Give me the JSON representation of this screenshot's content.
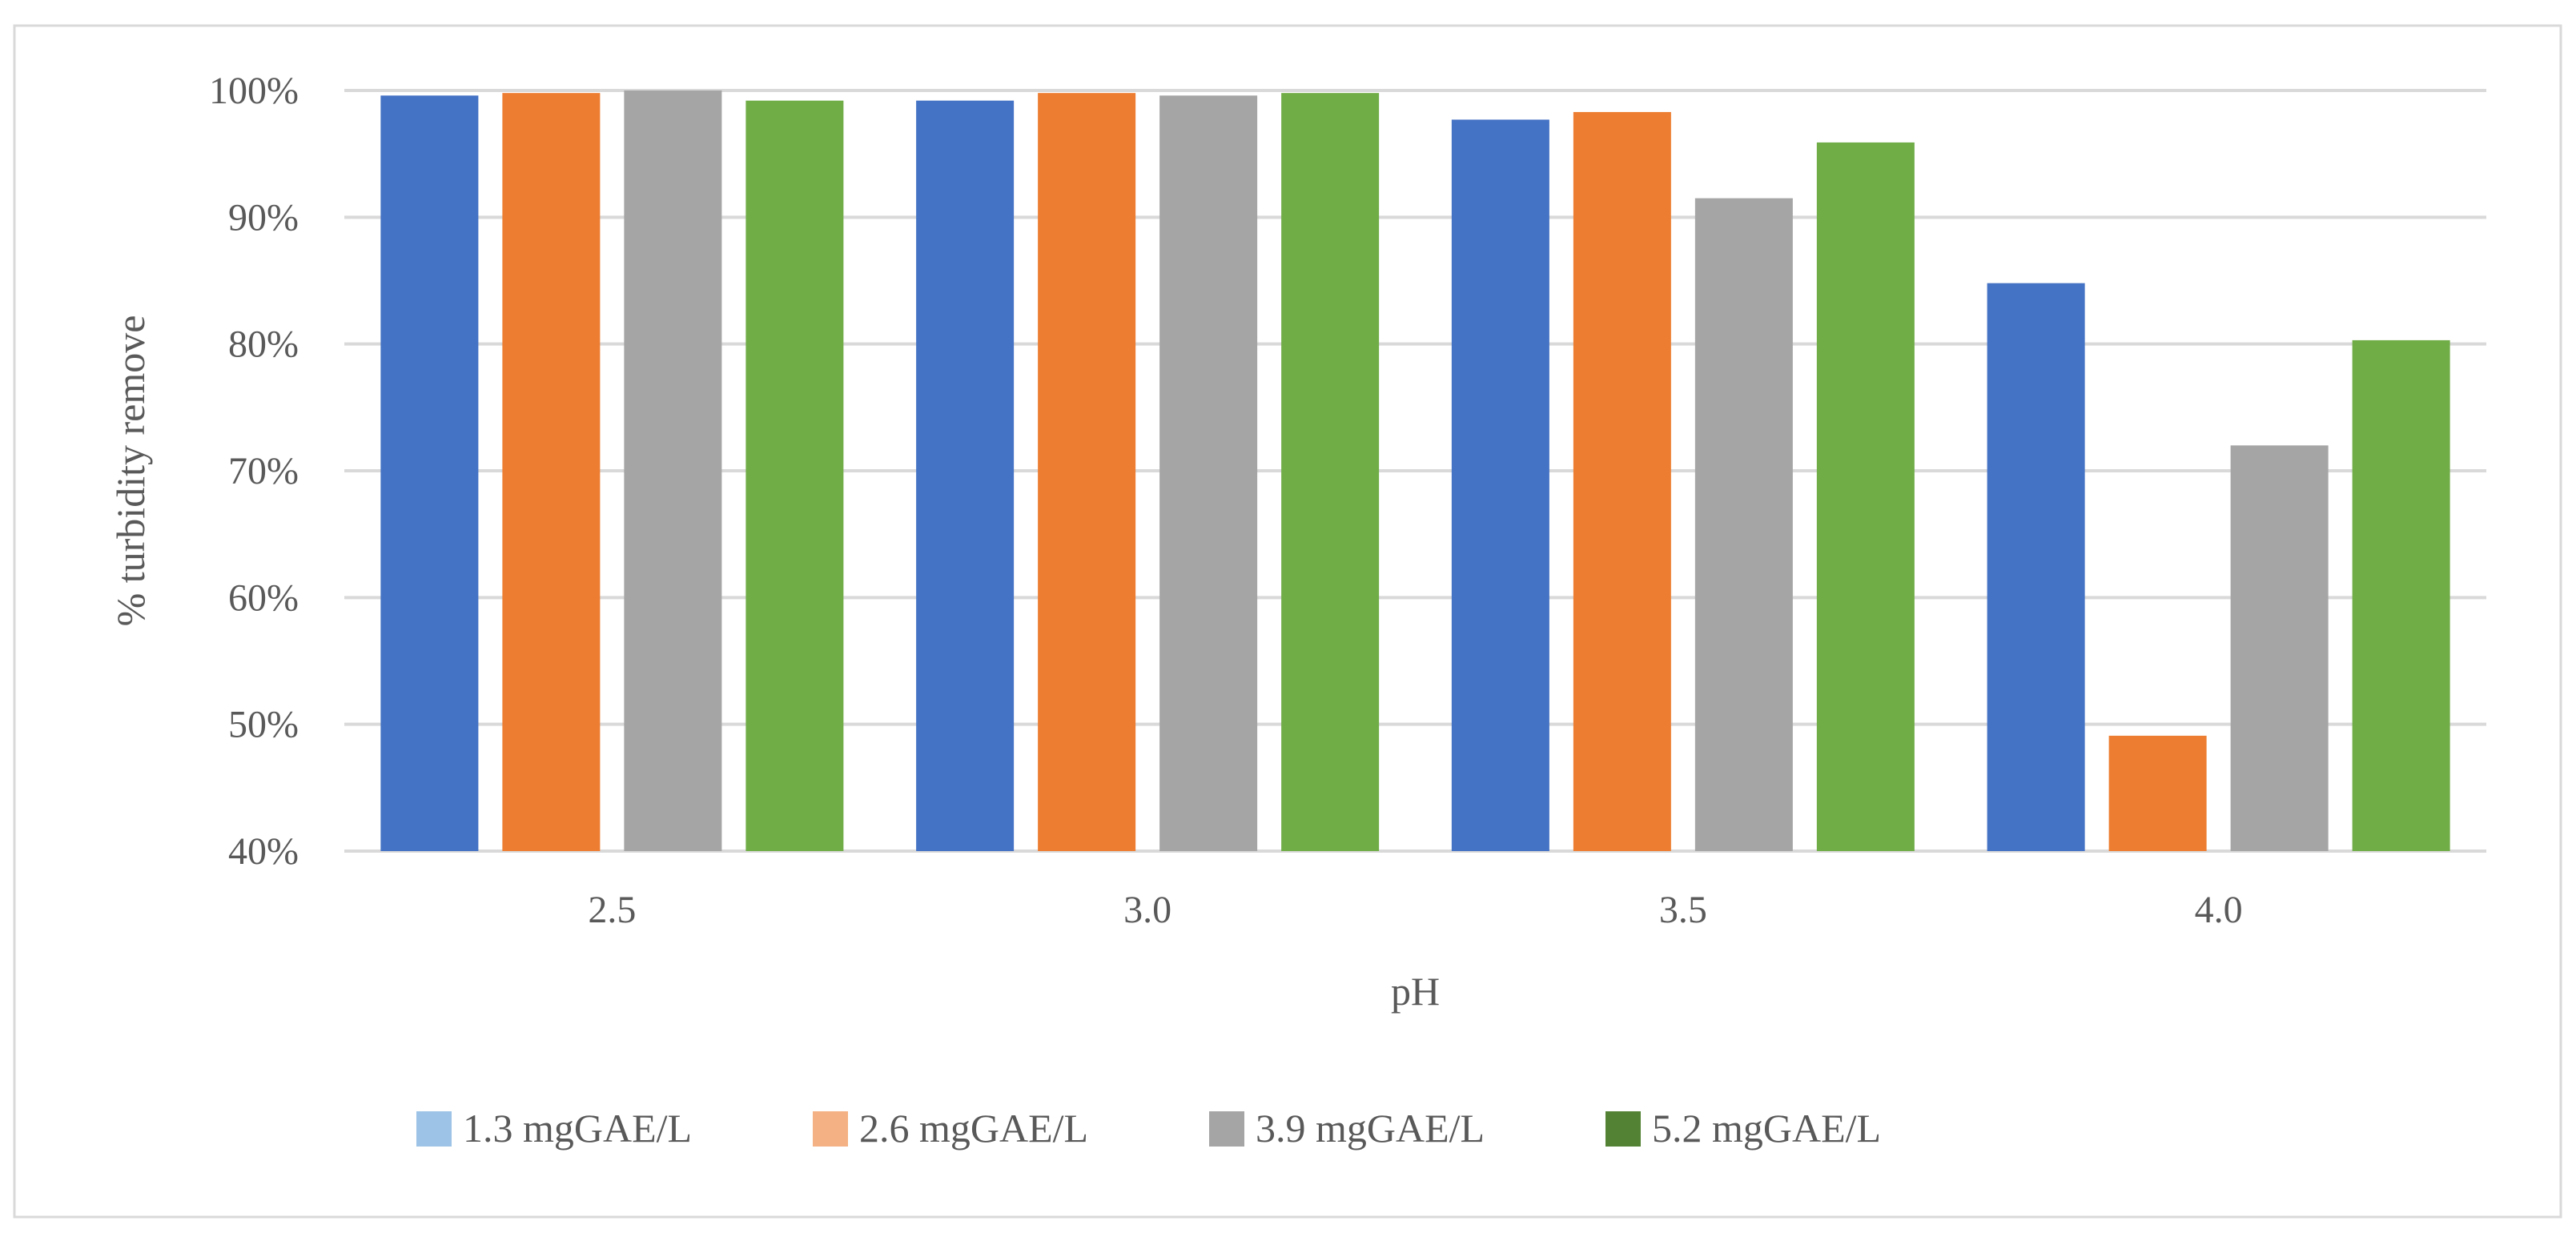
{
  "chart_data": {
    "type": "bar",
    "title": "",
    "xlabel": "pH",
    "ylabel": "% turbidity remove",
    "categories": [
      "2.5",
      "3.0",
      "3.5",
      "4.0"
    ],
    "ylim": [
      40,
      100
    ],
    "yticks": [
      40,
      50,
      60,
      70,
      80,
      90,
      100
    ],
    "ytick_labels": [
      "40%",
      "50%",
      "60%",
      "70%",
      "80%",
      "90%",
      "100%"
    ],
    "grid": true,
    "legend_position": "bottom",
    "series": [
      {
        "name": "1.3 mgGAE/L",
        "color": "#4472C4",
        "legend_color": "#9DC3E6",
        "values": [
          99.6,
          99.2,
          97.7,
          84.8
        ]
      },
      {
        "name": "2.6 mgGAE/L",
        "color": "#ED7D31",
        "legend_color": "#F4B183",
        "values": [
          99.8,
          99.8,
          98.3,
          49.1
        ]
      },
      {
        "name": "3.9 mgGAE/L",
        "color": "#A5A5A5",
        "legend_color": "#A5A5A5",
        "values": [
          100.0,
          99.6,
          91.5,
          72.0
        ]
      },
      {
        "name": "5.2 mgGAE/L",
        "color": "#70AD47",
        "legend_color": "#548235",
        "values": [
          99.2,
          99.8,
          95.9,
          80.3
        ]
      }
    ]
  }
}
